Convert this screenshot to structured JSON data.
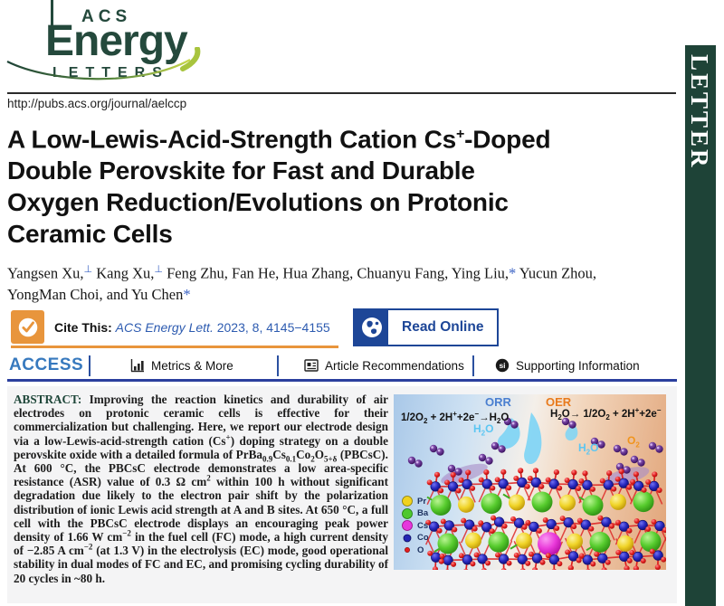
{
  "journal": {
    "brand_top": "ACS",
    "brand_main": "Energy",
    "brand_sub": "LETTERS",
    "url": "http://pubs.acs.org/journal/aelccp",
    "side_banner": "LETTER"
  },
  "colors": {
    "brand_green": "#1e4337",
    "acs_blue": "#1d4697",
    "access_blue": "#3779be",
    "cite_orange": "#e8953c",
    "link_blue": "#2d5bb0"
  },
  "article": {
    "title_html": "A Low-Lewis-Acid-Strength Cation Cs<sup>+</sup>-Doped<br>Double Perovskite for Fast and Durable<br>Oxygen Reduction/Evolutions on Protonic<br>Ceramic Cells",
    "authors_html": "Yangsen Xu,<sup class='mark'>&#8869;</sup> Kang Xu,<sup class='mark'>&#8869;</sup> Feng Zhu, Fan He, Hua Zhang, Chuanyu Fang, Ying Liu,<span class='mark'>*</span> Yucun Zhou,<br>YongMan Choi, and Yu Chen<span class='mark'>*</span>"
  },
  "cite_bar": {
    "label": "Cite This:",
    "reference_html": "<i>ACS Energy Lett.</i> 2023, 8, 4145&#8722;4155",
    "read_online": "Read Online"
  },
  "access_bar": {
    "access": "ACCESS",
    "metrics": "Metrics & More",
    "recommendations": "Article Recommendations",
    "supporting": "Supporting Information",
    "si_icon_text": "si"
  },
  "abstract": {
    "label": "ABSTRACT:",
    "body_html": " Improving the reaction kinetics and durability of air electrodes on protonic ceramic cells is effective for their commercialization but challenging. Here, we report our electrode design via a low-Lewis-acid-strength cation (Cs<sup>+</sup>) doping strategy on a double perovskite oxide with a detailed formula of PrBa<sub>0.9</sub>Cs<sub>0.1</sub>Co<sub>2</sub>O<sub>5+&#948;</sub> (PBCsC). At 600 &#176;C, the PBCsC electrode demonstrates a low area-specific resistance (ASR) value of 0.3 &#937; cm<sup>2</sup> within 100 h without significant degradation due likely to the electron pair shift by the polarization distribution of ionic Lewis acid strength at A and B sites. At 650 &#176;C, a full cell with the PBCsC electrode displays an encouraging peak power density of 1.66 W cm<sup>&#8722;2</sup> in the fuel cell (FC) mode, a high current density of &#8722;2.85 A cm<sup>&#8722;2</sup> (at 1.3 V) in the electrolysis (EC) mode, good operational stability in dual modes of FC and EC, and promising cycling durability of 20 cycles in ~80 h."
  },
  "figure": {
    "orr_label": "ORR",
    "oer_label": "OER",
    "orr_equation_html": "1/2O<sub>2</sub> + 2H<sup>+</sup>+2e<sup>&#8722;</sup>&#8594;H<sub>2</sub>O",
    "oer_equation_html": "H<sub>2</sub>O&#8594; 1/2O<sub>2</sub> + 2H<sup>+</sup>+2e<sup>&#8722;</sup>",
    "h2o_left_html": "H<sub>2</sub>O",
    "h2o_right_html": "H<sub>2</sub>O",
    "o2_label_html": "O<sub>2</sub>",
    "legend": [
      {
        "label": "Pr",
        "color": "#f0d21e"
      },
      {
        "label": "Ba",
        "color": "#4ec82e"
      },
      {
        "label": "Cs",
        "color": "#e637dd"
      },
      {
        "label": "Co",
        "color": "#2326b4"
      },
      {
        "label": "O",
        "color": "#e31e1e"
      }
    ]
  }
}
